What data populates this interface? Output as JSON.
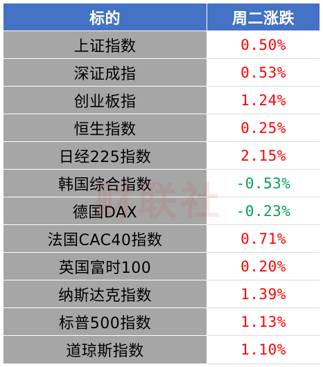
{
  "header": {
    "col1": "标的",
    "col2": "周二涨跌"
  },
  "rows": [
    {
      "name": "上证指数",
      "change": "0.50%",
      "direction": "up"
    },
    {
      "name": "深证成指",
      "change": "0.53%",
      "direction": "up"
    },
    {
      "name": "创业板指",
      "change": "1.24%",
      "direction": "up"
    },
    {
      "name": "恒生指数",
      "change": "0.25%",
      "direction": "up"
    },
    {
      "name": "日经225指数",
      "change": "2.15%",
      "direction": "up"
    },
    {
      "name": "韩国综合指数",
      "change": "-0.53%",
      "direction": "down"
    },
    {
      "name": "德国DAX",
      "change": "-0.23%",
      "direction": "down"
    },
    {
      "name": "法国CAC40指数",
      "change": "0.71%",
      "direction": "up"
    },
    {
      "name": "英国富时100",
      "change": "0.20%",
      "direction": "up"
    },
    {
      "name": "纳斯达克指数",
      "change": "1.39%",
      "direction": "up"
    },
    {
      "name": "标普500指数",
      "change": "1.13%",
      "direction": "up"
    },
    {
      "name": "道琼斯指数",
      "change": "1.10%",
      "direction": "up"
    }
  ],
  "colors": {
    "header_bg": "#4472c4",
    "name_bg": "#a6a6a6",
    "up": "#ff0000",
    "down": "#00a050"
  },
  "watermark": "财联社"
}
